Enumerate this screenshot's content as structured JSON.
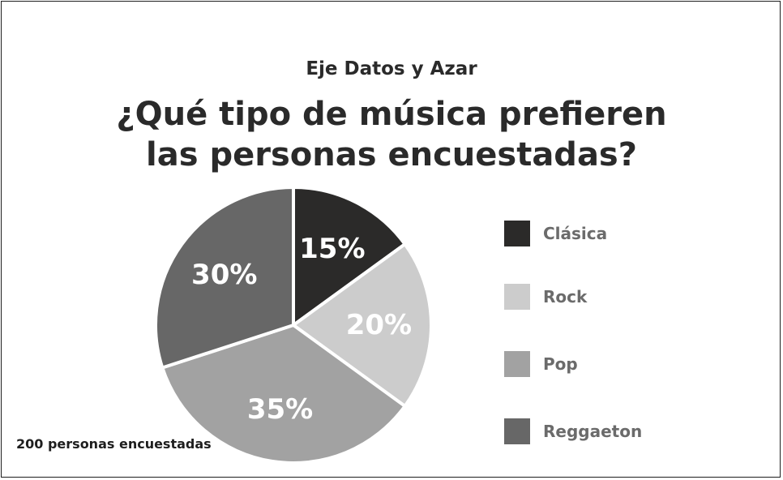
{
  "header": {
    "subtitle": "Eje Datos y Azar",
    "title_line1": "¿Qué tipo de música prefieren",
    "title_line2": "las personas encuestadas?"
  },
  "note": "200 personas encuestadas",
  "chart_data": {
    "type": "pie",
    "title": "¿Qué tipo de música prefieren las personas encuestadas?",
    "subtitle": "Eje Datos y Azar",
    "categories": [
      "Clásica",
      "Rock",
      "Pop",
      "Reggaeton"
    ],
    "values": [
      15,
      20,
      35,
      30
    ],
    "labels": [
      "15%",
      "20%",
      "35%",
      "30%"
    ],
    "colors": [
      "#2b2a29",
      "#cccccc",
      "#a2a2a2",
      "#676767"
    ],
    "label_colors": [
      "#ffffff",
      "#ffffff",
      "#ffffff",
      "#ffffff"
    ],
    "legend_placement": "right",
    "annotation": "200 personas encuestadas"
  }
}
